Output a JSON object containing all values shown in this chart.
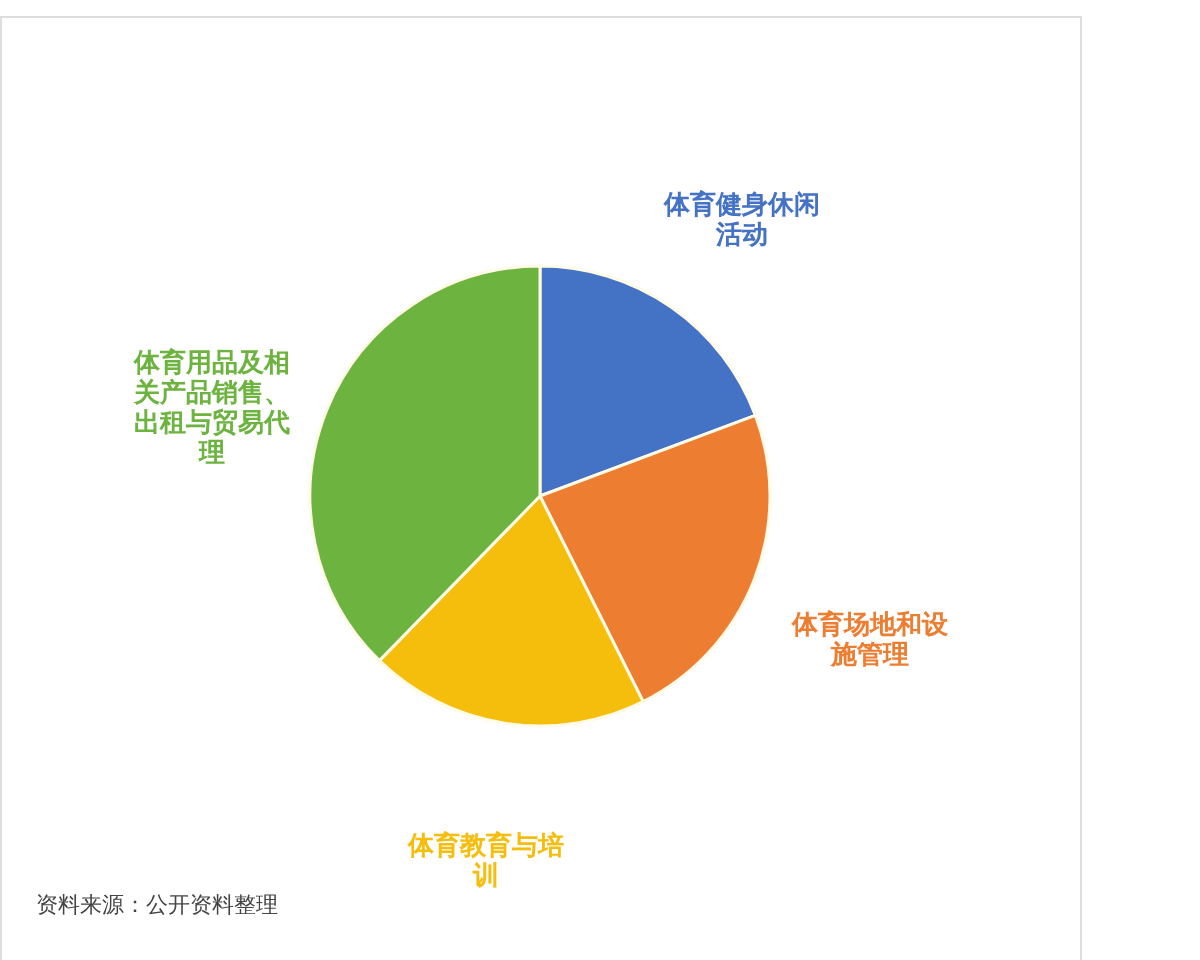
{
  "chart_data": {
    "type": "pie",
    "categories": [
      "体育健身休闲活动",
      "体育场地和设施管理",
      "体育教育与培训",
      "体育用品及相关产品销售、出租与贸易代理"
    ],
    "values": [
      19.3,
      23.3,
      19.7,
      37.7
    ],
    "colors": [
      "#4472c4",
      "#ed7d31",
      "#f5bd0c",
      "#6db33f"
    ],
    "annotations": [
      "资料来源：公开资料整理"
    ]
  }
}
